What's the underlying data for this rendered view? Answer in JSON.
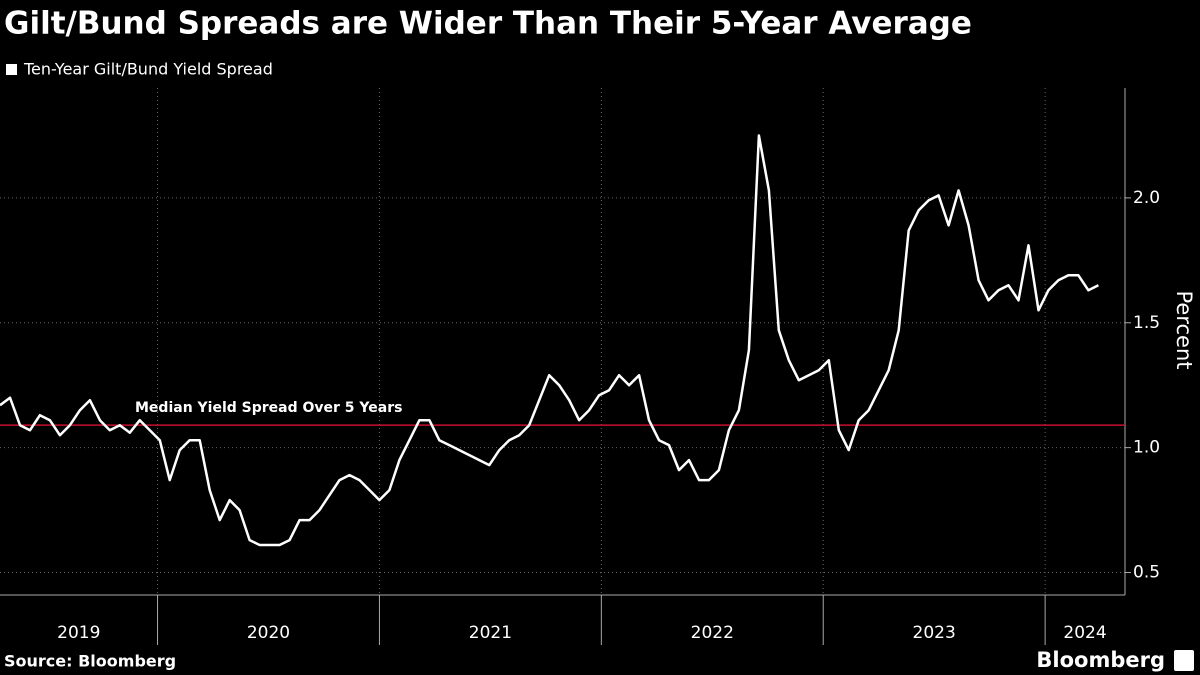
{
  "chart_data": {
    "type": "line",
    "title": "Gilt/Bund Spreads are Wider Than Their 5-Year Average",
    "y_label": "Percent",
    "source": "Source: Bloomberg",
    "brand": "Bloomberg",
    "grid": true,
    "xlim": [
      2019.29,
      2024.36
    ],
    "xticks": [
      2019,
      2020,
      2021,
      2022,
      2023,
      2024
    ],
    "ylim": [
      0.41,
      2.44
    ],
    "yticks": [
      0.5,
      {
        "value": 1,
        "label": "1.0"
      },
      {
        "value": 1.5,
        "label": "1.5"
      },
      {
        "value": 2,
        "label": "2.0"
      }
    ],
    "reference": {
      "value": 1.09,
      "label": "Median Yield Spread Over 5 Years",
      "color": "#c8102e"
    },
    "series": [
      {
        "name": "Ten-Year Gilt/Bund Yield Spread",
        "color": "#ffffff",
        "x": [
          2019.29,
          2019.335,
          2019.38,
          2019.425,
          2019.47,
          2019.515,
          2019.56,
          2019.605,
          2019.65,
          2019.695,
          2019.74,
          2019.785,
          2019.83,
          2019.875,
          2019.92,
          2019.965,
          2020.01,
          2020.055,
          2020.1,
          2020.145,
          2020.19,
          2020.235,
          2020.28,
          2020.325,
          2020.37,
          2020.415,
          2020.46,
          2020.505,
          2020.55,
          2020.595,
          2020.64,
          2020.685,
          2020.73,
          2020.775,
          2020.82,
          2020.865,
          2020.91,
          2020.955,
          2021.0,
          2021.045,
          2021.09,
          2021.135,
          2021.18,
          2021.225,
          2021.27,
          2021.315,
          2021.36,
          2021.405,
          2021.45,
          2021.495,
          2021.54,
          2021.585,
          2021.63,
          2021.675,
          2021.72,
          2021.765,
          2021.81,
          2021.855,
          2021.9,
          2021.945,
          2021.99,
          2022.035,
          2022.08,
          2022.125,
          2022.17,
          2022.215,
          2022.26,
          2022.305,
          2022.35,
          2022.395,
          2022.44,
          2022.485,
          2022.53,
          2022.575,
          2022.62,
          2022.665,
          2022.71,
          2022.755,
          2022.8,
          2022.845,
          2022.89,
          2022.935,
          2022.98,
          2023.025,
          2023.07,
          2023.115,
          2023.16,
          2023.205,
          2023.25,
          2023.295,
          2023.34,
          2023.385,
          2023.43,
          2023.475,
          2023.52,
          2023.565,
          2023.61,
          2023.655,
          2023.7,
          2023.745,
          2023.79,
          2023.835,
          2023.88,
          2023.925,
          2023.97,
          2024.015,
          2024.06,
          2024.105,
          2024.15,
          2024.195,
          2024.24
        ],
        "values": [
          1.17,
          1.2,
          1.09,
          1.07,
          1.13,
          1.11,
          1.05,
          1.09,
          1.15,
          1.19,
          1.11,
          1.07,
          1.09,
          1.06,
          1.11,
          1.07,
          1.03,
          0.87,
          0.99,
          1.03,
          1.03,
          0.83,
          0.71,
          0.79,
          0.75,
          0.63,
          0.61,
          0.61,
          0.61,
          0.63,
          0.71,
          0.71,
          0.75,
          0.81,
          0.87,
          0.89,
          0.87,
          0.83,
          0.79,
          0.83,
          0.95,
          1.03,
          1.11,
          1.11,
          1.03,
          1.01,
          0.99,
          0.97,
          0.95,
          0.93,
          0.99,
          1.03,
          1.05,
          1.09,
          1.19,
          1.29,
          1.25,
          1.19,
          1.11,
          1.15,
          1.21,
          1.23,
          1.29,
          1.25,
          1.29,
          1.11,
          1.03,
          1.01,
          0.91,
          0.95,
          0.87,
          0.87,
          0.91,
          1.07,
          1.15,
          1.39,
          2.25,
          2.03,
          1.47,
          1.35,
          1.27,
          1.29,
          1.31,
          1.35,
          1.07,
          0.99,
          1.11,
          1.15,
          1.23,
          1.31,
          1.47,
          1.87,
          1.95,
          1.99,
          2.01,
          1.89,
          2.03,
          1.89,
          1.67,
          1.59,
          1.63,
          1.65,
          1.59,
          1.81,
          1.55,
          1.63,
          1.67,
          1.69,
          1.69,
          1.63,
          1.65
        ]
      }
    ]
  }
}
